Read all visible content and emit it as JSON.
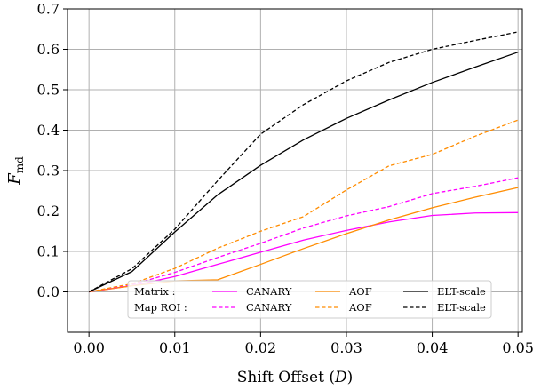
{
  "chart_data": {
    "type": "line",
    "xlabel_text": "Shift Offset (",
    "xlabel_var": "D",
    "xlabel_close": ")",
    "ylabel_main": "F",
    "ylabel_sub": "md",
    "xlim": [
      -0.0025,
      0.0505
    ],
    "ylim": [
      -0.1,
      0.7
    ],
    "xticks": [
      0.0,
      0.01,
      0.02,
      0.03,
      0.04,
      0.05
    ],
    "xtick_labels": [
      "0.00",
      "0.01",
      "0.02",
      "0.03",
      "0.04",
      "0.05"
    ],
    "yticks": [
      0.0,
      0.1,
      0.2,
      0.3,
      0.4,
      0.5,
      0.6,
      0.7
    ],
    "ytick_labels": [
      "0.0",
      "0.1",
      "0.2",
      "0.3",
      "0.4",
      "0.5",
      "0.6",
      "0.7"
    ],
    "grid": true,
    "legend_position": "bottom-center",
    "legend_rows": [
      "Matrix :",
      "Map ROI :"
    ],
    "x": [
      0.0,
      0.005,
      0.01,
      0.015,
      0.02,
      0.025,
      0.03,
      0.035,
      0.04,
      0.045,
      0.05
    ],
    "series": [
      {
        "name": "CANARY",
        "group": "Matrix :",
        "color": "#ff00ff",
        "dash": "solid",
        "values": [
          0.0,
          0.015,
          0.038,
          0.068,
          0.098,
          0.128,
          0.152,
          0.173,
          0.189,
          0.195,
          0.196
        ]
      },
      {
        "name": "AOF",
        "group": "Matrix :",
        "color": "#ff8c00",
        "dash": "solid",
        "values": [
          0.0,
          0.015,
          0.027,
          0.03,
          0.068,
          0.107,
          0.144,
          0.178,
          0.208,
          0.234,
          0.258
        ]
      },
      {
        "name": "ELT-scale",
        "group": "Matrix :",
        "color": "#000000",
        "dash": "solid",
        "values": [
          0.0,
          0.05,
          0.148,
          0.24,
          0.313,
          0.376,
          0.429,
          0.475,
          0.518,
          0.556,
          0.593
        ]
      },
      {
        "name": "CANARY",
        "group": "Map ROI :",
        "color": "#ff00ff",
        "dash": "dashed",
        "values": [
          0.0,
          0.018,
          0.048,
          0.085,
          0.12,
          0.158,
          0.188,
          0.211,
          0.243,
          0.261,
          0.282
        ]
      },
      {
        "name": "AOF",
        "group": "Map ROI :",
        "color": "#ff8c00",
        "dash": "dashed",
        "values": [
          0.0,
          0.02,
          0.058,
          0.108,
          0.15,
          0.186,
          0.252,
          0.312,
          0.34,
          0.385,
          0.425
        ]
      },
      {
        "name": "ELT-scale",
        "group": "Map ROI :",
        "color": "#000000",
        "dash": "dashed",
        "values": [
          0.0,
          0.057,
          0.155,
          0.275,
          0.39,
          0.463,
          0.522,
          0.568,
          0.6,
          0.622,
          0.643
        ]
      }
    ]
  }
}
